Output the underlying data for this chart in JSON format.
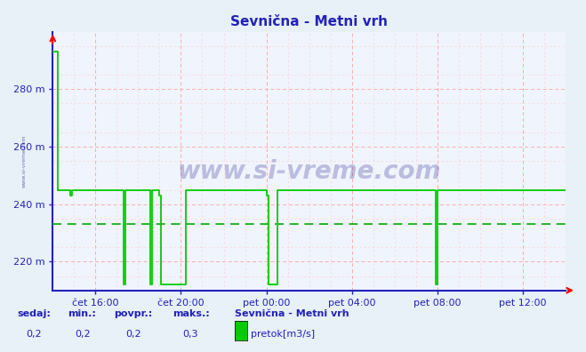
{
  "title": "Sevnična - Metni vrh",
  "bg_color": "#e8f0f8",
  "plot_bg_color": "#f0f4fc",
  "line_color": "#00cc00",
  "axis_color": "#2222bb",
  "grid_color_major": "#ffaaaa",
  "grid_color_minor": "#ffd0d0",
  "dashed_line_color": "#00aa00",
  "xlim": [
    0,
    288
  ],
  "ylim": [
    210,
    300
  ],
  "yticks": [
    220,
    240,
    260,
    280
  ],
  "ytick_labels": [
    "220 m",
    "240 m",
    "260 m",
    "280 m"
  ],
  "xtick_positions": [
    24,
    72,
    120,
    168,
    216,
    264
  ],
  "xtick_labels": [
    "čet 16:00",
    "čet 20:00",
    "pet 00:00",
    "pet 04:00",
    "pet 08:00",
    "pet 12:00"
  ],
  "dashed_y": 233,
  "watermark_main": "www.si-vreme.com",
  "watermark_side": "www.si-vreme.com",
  "bottom_labels": {
    "sedaj_label": "sedaj:",
    "sedaj_val": "0,2",
    "min_label": "min.:",
    "min_val": "0,2",
    "povpr_label": "povpr.:",
    "povpr_val": "0,2",
    "maks_label": "maks.:",
    "maks_val": "0,3",
    "series_label": "Sevnična - Metni vrh",
    "legend_color": "#00cc00",
    "legend_text": "pretok[m3/s]"
  },
  "x_data": [
    0,
    3,
    3,
    10,
    10,
    11,
    11,
    40,
    40,
    41,
    41,
    55,
    55,
    56,
    56,
    60,
    60,
    61,
    61,
    75,
    75,
    76,
    76,
    120,
    120,
    121,
    121,
    126,
    126,
    127,
    127,
    215,
    215,
    216,
    216,
    223,
    223,
    288
  ],
  "y_data": [
    293,
    293,
    245,
    245,
    243,
    243,
    245,
    245,
    212,
    212,
    245,
    245,
    212,
    212,
    245,
    245,
    243,
    243,
    212,
    212,
    245,
    245,
    245,
    245,
    243,
    243,
    212,
    212,
    245,
    245,
    245,
    245,
    212,
    212,
    245,
    245,
    245,
    245
  ]
}
